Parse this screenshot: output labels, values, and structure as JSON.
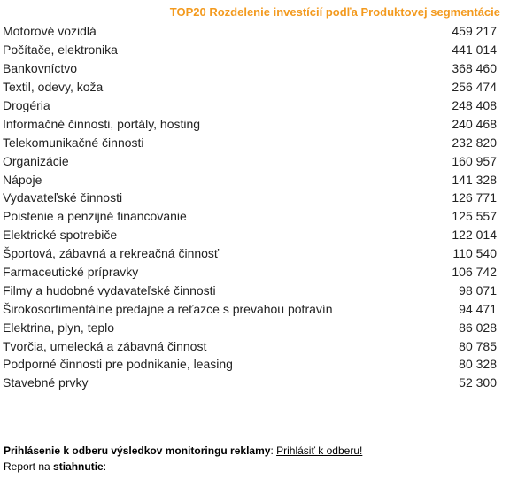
{
  "title": "TOP20 Rozdelenie investícií podľa Produktovej segmentácie",
  "rows": [
    {
      "label": "Motorové vozidlá",
      "value": "459 217"
    },
    {
      "label": "Počítače, elektronika",
      "value": "441 014"
    },
    {
      "label": "Bankovníctvo",
      "value": "368 460"
    },
    {
      "label": "Textil, odevy, koža",
      "value": "256 474"
    },
    {
      "label": "Drogéria",
      "value": "248 408"
    },
    {
      "label": "Informačné činnosti, portály, hosting",
      "value": "240 468"
    },
    {
      "label": "Telekomunikačné činnosti",
      "value": "232 820"
    },
    {
      "label": "Organizácie",
      "value": "160 957"
    },
    {
      "label": "Nápoje",
      "value": "141 328"
    },
    {
      "label": "Vydavateľské činnosti",
      "value": "126 771"
    },
    {
      "label": "Poistenie a penzijné financovanie",
      "value": "125 557"
    },
    {
      "label": "Elektrické spotrebiče",
      "value": "122 014"
    },
    {
      "label": "Športová, zábavná a rekreačná činnosť",
      "value": "110 540"
    },
    {
      "label": "Farmaceutické prípravky",
      "value": "106 742"
    },
    {
      "label": "Filmy a hudobné vydavateľské činnosti",
      "value": "98 071"
    },
    {
      "label": "Širokosortimentálne predajne a reťazce s prevahou potravín",
      "value": "94 471"
    },
    {
      "label": "Elektrina, plyn, teplo",
      "value": "86 028"
    },
    {
      "label": "Tvorčia, umelecká a zábavná činnost",
      "value": "80 785"
    },
    {
      "label": "Podporné činnosti pre podnikanie, leasing",
      "value": "80 328"
    },
    {
      "label": "Stavebné prvky",
      "value": "52 300"
    }
  ],
  "footer": {
    "subscribe_label": "Prihlásenie k odberu výsledkov monitoringu reklamy",
    "subscribe_sep": ": ",
    "subscribe_link": "Prihlásiť k odberu!",
    "report_prefix": "Report na ",
    "report_bold": "stiahnutie",
    "report_suffix": ":"
  },
  "colors": {
    "title": "#f39a1e",
    "text": "#222222"
  }
}
